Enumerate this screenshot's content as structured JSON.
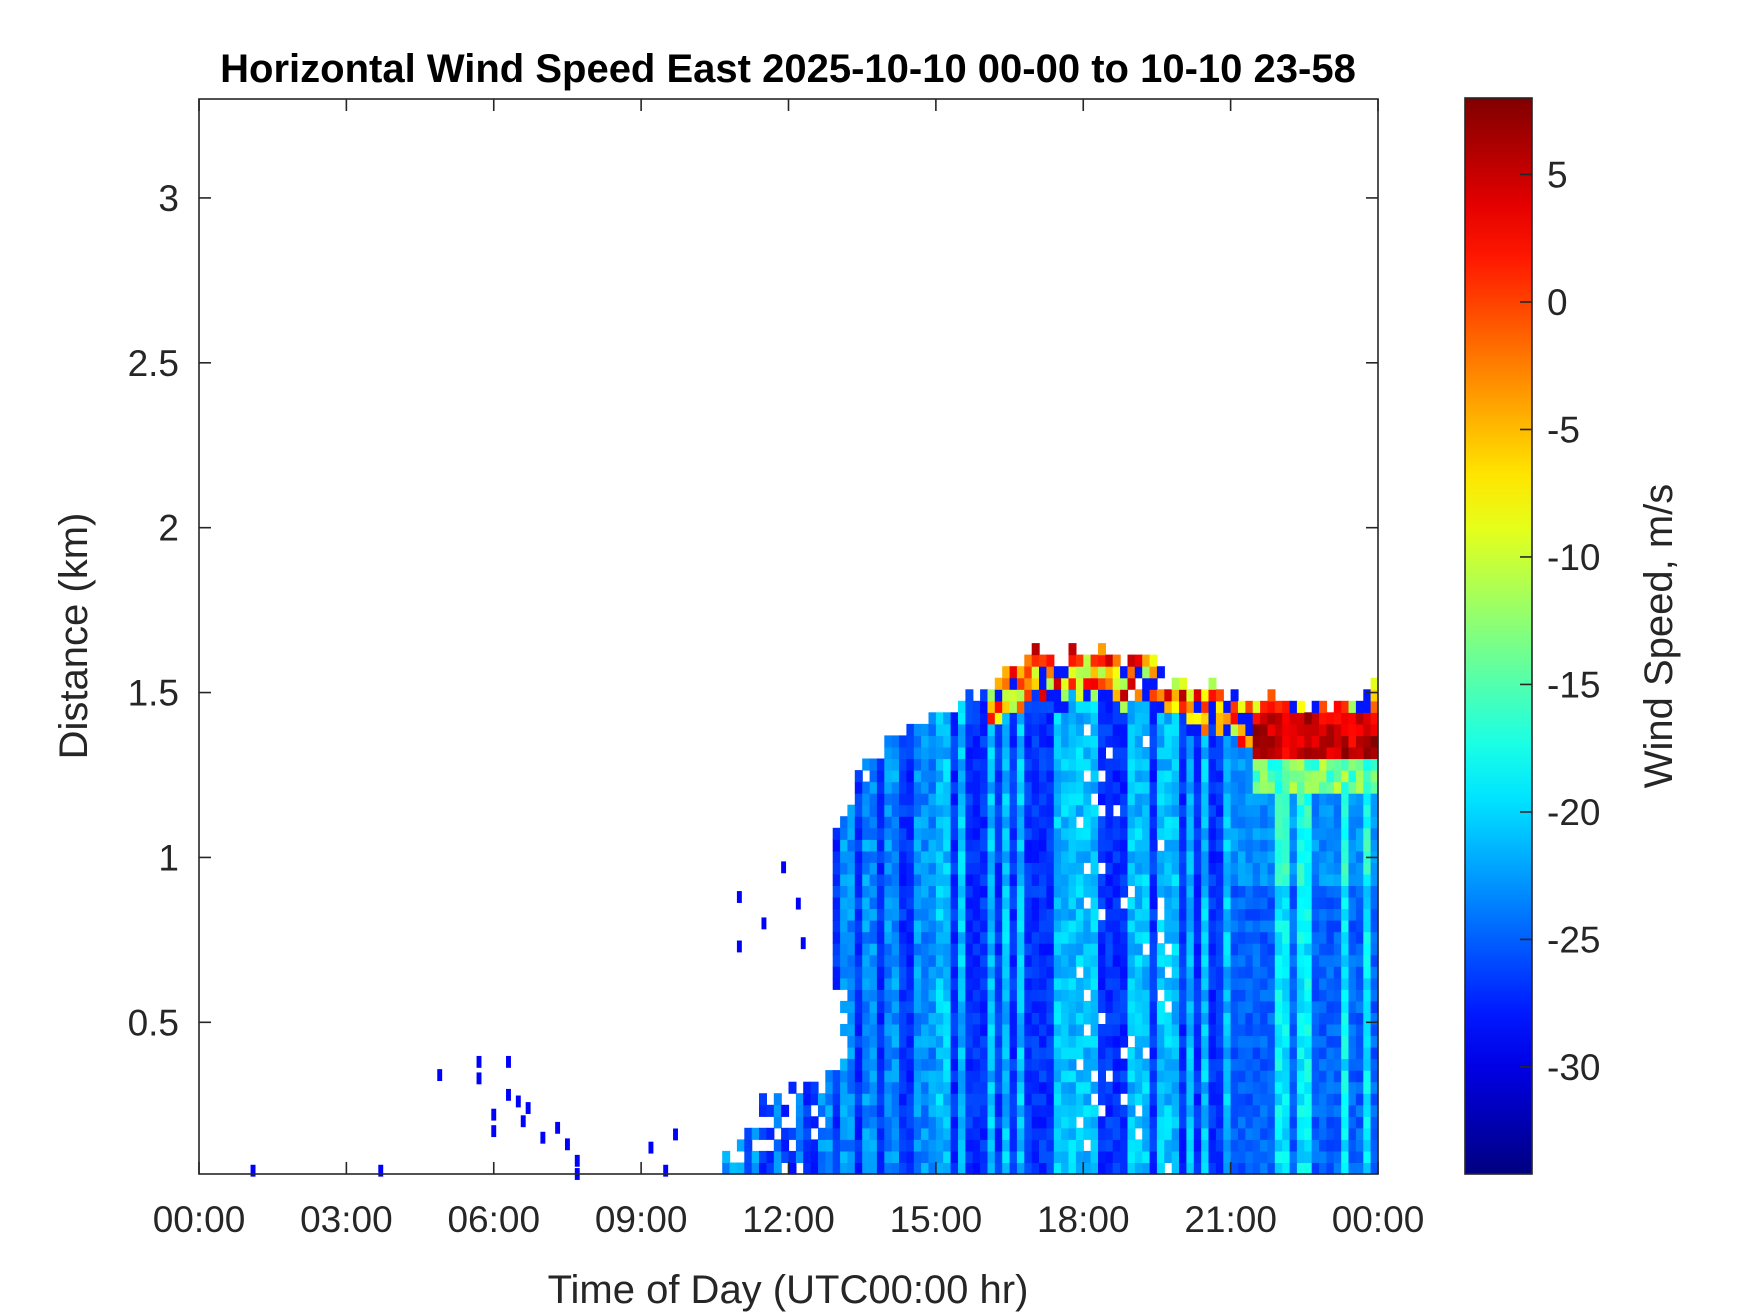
{
  "chart_data": {
    "type": "heatmap",
    "title": "Horizontal Wind Speed East 2025-10-10 00-00 to 10-10 23-58",
    "xlabel": "Time of Day (UTC00:00 hr)",
    "ylabel": "Distance (km)",
    "colorbar_label": "Wind Speed, m/s",
    "x_tick_labels": [
      "00:00",
      "03:00",
      "06:00",
      "09:00",
      "12:00",
      "15:00",
      "18:00",
      "21:00",
      "00:00"
    ],
    "x_ticks_hours": [
      0,
      3,
      6,
      9,
      12,
      15,
      18,
      21,
      24
    ],
    "xlim_hours": [
      0,
      24
    ],
    "y_ticks": [
      0.5,
      1,
      1.5,
      2,
      2.5,
      3
    ],
    "y_tick_labels": [
      "0.5",
      "1",
      "1.5",
      "2",
      "2.5",
      "3"
    ],
    "ylim": [
      0.04,
      3.3
    ],
    "colorbar_ticks": [
      5,
      0,
      -5,
      -10,
      -15,
      -20,
      -25,
      -30
    ],
    "colorbar_tick_labels": [
      "5",
      "0",
      "-5",
      "-10",
      "-15",
      "-20",
      "-25",
      "-30"
    ],
    "clim": [
      -34.2,
      8
    ],
    "colormap": "jet",
    "grid": false,
    "data_left_edge_hours_by_km": [
      [
        0.04,
        10.6
      ],
      [
        0.28,
        11.5
      ],
      [
        0.33,
        12.8
      ],
      [
        0.45,
        13.3
      ],
      [
        0.6,
        13.0
      ],
      [
        0.75,
        12.6
      ],
      [
        0.9,
        12.5
      ],
      [
        1.05,
        12.7
      ],
      [
        1.15,
        13.2
      ],
      [
        1.3,
        13.7
      ],
      [
        1.38,
        14.3
      ],
      [
        1.45,
        15.5
      ],
      [
        1.55,
        16.1
      ],
      [
        1.62,
        17.0
      ]
    ],
    "data_top_km_by_hour": [
      [
        10.6,
        0.22
      ],
      [
        11,
        0.27
      ],
      [
        12,
        0.31
      ],
      [
        12.8,
        0.34
      ],
      [
        13.0,
        1.2
      ],
      [
        13.5,
        1.3
      ],
      [
        14,
        1.38
      ],
      [
        15,
        1.45
      ],
      [
        16,
        1.55
      ],
      [
        17,
        1.6
      ],
      [
        18.5,
        1.6
      ],
      [
        19.5,
        1.58
      ],
      [
        20,
        1.52
      ],
      [
        21,
        1.5
      ],
      [
        22,
        1.45
      ],
      [
        23,
        1.45
      ],
      [
        24,
        1.5
      ]
    ],
    "typical_speed_ms": -27,
    "light_streak_speed_ms": -21,
    "warm_top_layer": {
      "hours": [
        16,
        24
      ],
      "speed_range_ms": [
        -12,
        6
      ]
    },
    "strong_positive_layer": {
      "hours": [
        21.5,
        24
      ],
      "km": [
        1.3,
        1.45
      ],
      "speed_ms": 5
    },
    "sparse_points": [
      [
        1.1,
        0.05
      ],
      [
        3.7,
        0.05
      ],
      [
        4.9,
        0.34
      ],
      [
        5.7,
        0.38
      ],
      [
        5.7,
        0.33
      ],
      [
        6.0,
        0.22
      ],
      [
        6.0,
        0.17
      ],
      [
        6.3,
        0.38
      ],
      [
        6.3,
        0.28
      ],
      [
        6.5,
        0.26
      ],
      [
        6.6,
        0.2
      ],
      [
        6.7,
        0.24
      ],
      [
        7.0,
        0.15
      ],
      [
        7.3,
        0.18
      ],
      [
        7.5,
        0.13
      ],
      [
        7.7,
        0.08
      ],
      [
        7.7,
        0.04
      ],
      [
        9.2,
        0.12
      ],
      [
        9.5,
        0.05
      ],
      [
        9.7,
        0.16
      ],
      [
        11.0,
        0.88
      ],
      [
        11.0,
        0.73
      ],
      [
        11.5,
        0.8
      ],
      [
        11.9,
        0.97
      ],
      [
        12.2,
        0.86
      ],
      [
        12.3,
        0.74
      ]
    ]
  }
}
